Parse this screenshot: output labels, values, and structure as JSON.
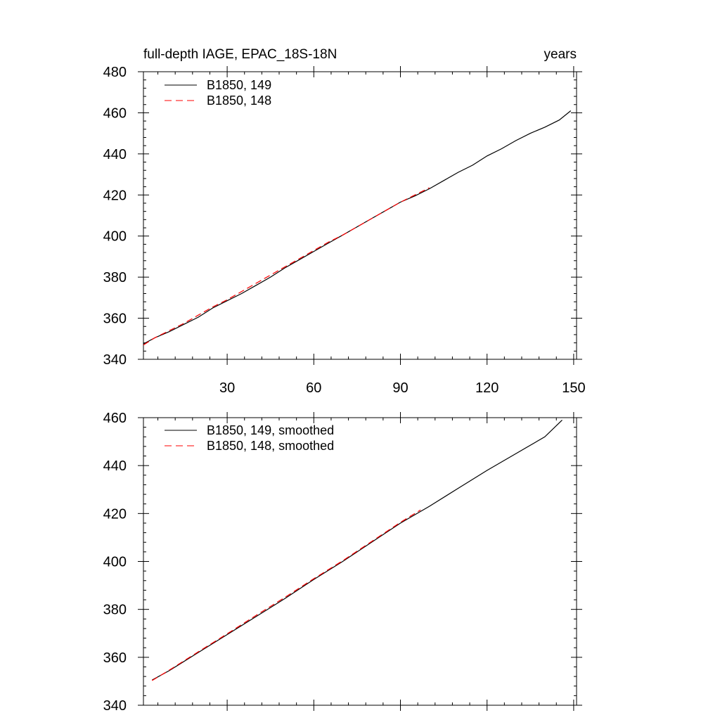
{
  "colors": {
    "series_149": "#000000",
    "series_148": "#ff0000",
    "axis": "#000000",
    "background": "#ffffff"
  },
  "chart_data": [
    {
      "type": "line",
      "title": "full-depth IAGE, EPAC_18S-18N",
      "title_right": "years",
      "xlabel": "",
      "ylabel": "",
      "xlim": [
        1,
        151
      ],
      "ylim": [
        340,
        480
      ],
      "xticks": [
        30,
        60,
        90,
        120,
        150
      ],
      "yticks": [
        340,
        360,
        380,
        400,
        420,
        440,
        460,
        480
      ],
      "grid": false,
      "legend_position": "top-left",
      "series": [
        {
          "name": "B1850, 149",
          "style": "solid",
          "x": [
            1,
            5,
            10,
            15,
            20,
            25,
            30,
            35,
            40,
            45,
            50,
            55,
            60,
            65,
            70,
            75,
            80,
            85,
            90,
            95,
            100,
            105,
            110,
            115,
            120,
            125,
            130,
            135,
            140,
            145,
            149
          ],
          "y": [
            347.5,
            350.5,
            353.5,
            357.0,
            360.5,
            365.0,
            368.5,
            372.0,
            376.0,
            380.0,
            384.5,
            388.5,
            392.5,
            396.5,
            400.5,
            404.5,
            408.5,
            412.5,
            416.5,
            419.5,
            423.0,
            427.0,
            431.0,
            434.5,
            439.0,
            442.5,
            446.5,
            450.0,
            453.0,
            456.5,
            461.0
          ]
        },
        {
          "name": "B1850, 148",
          "style": "dashed",
          "x": [
            1,
            5,
            10,
            15,
            20,
            25,
            30,
            35,
            40,
            45,
            50,
            55,
            60,
            65,
            70,
            75,
            80,
            85,
            90,
            95,
            100
          ],
          "y": [
            347.0,
            350.5,
            354.0,
            357.5,
            361.5,
            365.5,
            369.0,
            373.0,
            377.0,
            381.0,
            385.0,
            389.0,
            393.0,
            397.0,
            400.5,
            404.5,
            408.5,
            412.5,
            416.5,
            420.0,
            423.5
          ]
        }
      ]
    },
    {
      "type": "line",
      "title": "",
      "xlabel": "",
      "ylabel": "",
      "xlim": [
        1,
        151
      ],
      "ylim": [
        340,
        460
      ],
      "xticks": [
        30,
        60,
        90,
        120,
        150
      ],
      "yticks": [
        340,
        360,
        380,
        400,
        420,
        440,
        460
      ],
      "grid": false,
      "legend_position": "top-left",
      "series": [
        {
          "name": "B1850, 149, smoothed",
          "style": "solid",
          "x": [
            4,
            10,
            20,
            30,
            40,
            50,
            60,
            70,
            80,
            90,
            100,
            110,
            120,
            130,
            140,
            146
          ],
          "y": [
            350.5,
            354.5,
            362.0,
            369.5,
            377.0,
            384.5,
            392.5,
            400.0,
            408.0,
            416.0,
            423.0,
            430.5,
            438.0,
            445.0,
            452.0,
            459.0
          ]
        },
        {
          "name": "B1850, 148, smoothed",
          "style": "dashed",
          "x": [
            4,
            10,
            20,
            30,
            40,
            50,
            60,
            70,
            80,
            90,
            97
          ],
          "y": [
            350.3,
            354.7,
            362.3,
            369.8,
            377.5,
            385.0,
            392.8,
            400.3,
            408.3,
            416.3,
            421.5
          ]
        }
      ]
    }
  ]
}
